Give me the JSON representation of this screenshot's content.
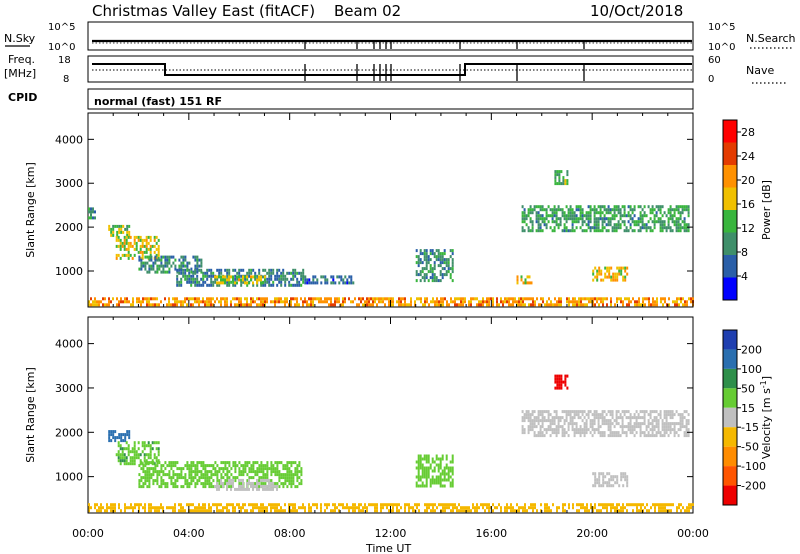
{
  "header": {
    "station": "Christmas Valley East (fitACF)",
    "beam": "Beam 02",
    "date": "10/Oct/2018",
    "mode": "normal (fast) 151 RF"
  },
  "strips": {
    "noise": {
      "left_label": "N.Sky",
      "right_label": "N.Search",
      "left_ticks": [
        "10^5",
        "10^0"
      ],
      "right_ticks": [
        "10^5",
        "10^0"
      ]
    },
    "freq": {
      "left_label_1": "Freq.",
      "left_label_2": "[MHz]",
      "right_label": "Nave",
      "left_ticks": [
        "18",
        "8"
      ],
      "right_ticks": [
        "60",
        "0"
      ]
    },
    "cpid_label": "CPID"
  },
  "chart_data": [
    {
      "type": "heatmap",
      "name": "Power",
      "ylabel": "Slant Range [km]",
      "xlabel": "Time UT",
      "xlim_hours": [
        0,
        24
      ],
      "ylim_km": [
        180,
        4600
      ],
      "x_ticks": [
        "00:00",
        "04:00",
        "08:00",
        "12:00",
        "16:00",
        "20:00",
        "00:00"
      ],
      "y_ticks": [
        1000,
        2000,
        3000,
        4000
      ],
      "colorbar": {
        "label": "Power [dB]",
        "ticks": [
          4,
          8,
          12,
          16,
          20,
          24,
          28
        ],
        "range": [
          0,
          30
        ],
        "colors": [
          "#0000ff",
          "#2a5fa8",
          "#3f8f6a",
          "#39b53d",
          "#f0c000",
          "#ff9100",
          "#e43b00",
          "#ff0000"
        ]
      },
      "regions": [
        {
          "t0": 0.0,
          "t1": 0.3,
          "r0": 2200,
          "r1": 2450,
          "value": 10
        },
        {
          "t0": 0.8,
          "t1": 1.6,
          "r0": 1800,
          "r1": 2050,
          "value": 14
        },
        {
          "t0": 1.1,
          "t1": 2.8,
          "r0": 1300,
          "r1": 1800,
          "value": 16
        },
        {
          "t0": 2.0,
          "t1": 4.5,
          "r0": 1000,
          "r1": 1350,
          "value": 9
        },
        {
          "t0": 3.5,
          "t1": 8.5,
          "r0": 700,
          "r1": 1050,
          "value": 8
        },
        {
          "t0": 5.0,
          "t1": 7.0,
          "r0": 700,
          "r1": 900,
          "value": 15
        },
        {
          "t0": 8.5,
          "t1": 10.5,
          "r0": 700,
          "r1": 900,
          "value": 7
        },
        {
          "t0": 13.0,
          "t1": 14.5,
          "r0": 800,
          "r1": 1500,
          "value": 9
        },
        {
          "t0": 17.0,
          "t1": 17.6,
          "r0": 700,
          "r1": 900,
          "value": 17
        },
        {
          "t0": 17.2,
          "t1": 23.8,
          "r0": 1900,
          "r1": 2500,
          "value": 11
        },
        {
          "t0": 18.5,
          "t1": 19.0,
          "r0": 3000,
          "r1": 3300,
          "value": 12
        },
        {
          "t0": 20.0,
          "t1": 21.4,
          "r0": 800,
          "r1": 1100,
          "value": 18
        },
        {
          "t0": 0.0,
          "t1": 24.0,
          "r0": 200,
          "r1": 400,
          "value": 20
        }
      ]
    },
    {
      "type": "heatmap",
      "name": "Velocity",
      "ylabel": "Slant Range [km]",
      "xlabel": "Time UT",
      "xlim_hours": [
        0,
        24
      ],
      "ylim_km": [
        180,
        4600
      ],
      "x_ticks": [
        "00:00",
        "04:00",
        "08:00",
        "12:00",
        "16:00",
        "20:00",
        "00:00"
      ],
      "y_ticks": [
        1000,
        2000,
        3000,
        4000
      ],
      "colorbar": {
        "label": "Velocity [m s",
        "label_sup": "-1",
        "label_end": "]",
        "ticks": [
          200,
          100,
          50,
          15,
          -15,
          -50,
          -100,
          -200
        ],
        "colors": [
          "#1f3fb0",
          "#2a6fb0",
          "#2e8f4a",
          "#66cc33",
          "#c0c0c0",
          "#f5b800",
          "#ff8c00",
          "#ff5500",
          "#ee0000"
        ]
      },
      "regions": [
        {
          "t0": 0.8,
          "t1": 1.6,
          "r0": 1800,
          "r1": 2050,
          "value": 120
        },
        {
          "t0": 1.1,
          "t1": 2.8,
          "r0": 1300,
          "r1": 1800,
          "value": 40
        },
        {
          "t0": 2.0,
          "t1": 8.5,
          "r0": 750,
          "r1": 1350,
          "value": 30
        },
        {
          "t0": 5.0,
          "t1": 7.5,
          "r0": 700,
          "r1": 950,
          "value": 0
        },
        {
          "t0": 13.0,
          "t1": 14.5,
          "r0": 800,
          "r1": 1500,
          "value": 30
        },
        {
          "t0": 17.2,
          "t1": 23.8,
          "r0": 1900,
          "r1": 2500,
          "value": 0
        },
        {
          "t0": 18.5,
          "t1": 19.0,
          "r0": 3000,
          "r1": 3300,
          "value": -250
        },
        {
          "t0": 20.0,
          "t1": 21.4,
          "r0": 800,
          "r1": 1100,
          "value": 0
        },
        {
          "t0": 0.0,
          "t1": 24.0,
          "r0": 200,
          "r1": 400,
          "value": -30
        }
      ]
    }
  ]
}
